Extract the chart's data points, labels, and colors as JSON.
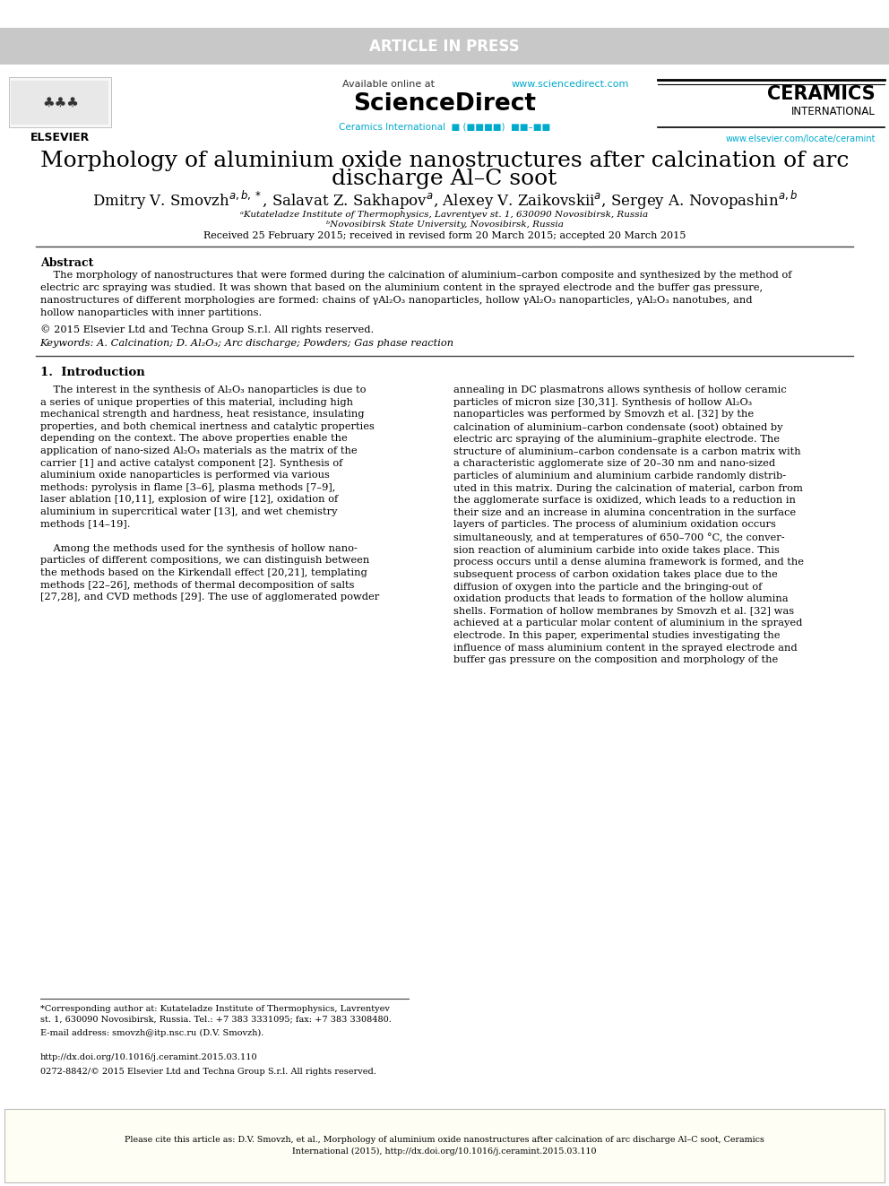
{
  "fig_width": 9.92,
  "fig_height": 13.23,
  "bg_color": "#ffffff",
  "header_bar_color": "#c8c8c8",
  "article_in_press_text": "ARTICLE IN PRESS",
  "article_in_press_color": "#ffffff",
  "article_in_press_fontsize": 12,
  "available_online_text": "Available online at ",
  "sciencedirect_url": "www.sciencedirect.com",
  "sciencedirect_big": "ScienceDirect",
  "ceramics_intl_line1": "CERAMICS",
  "ceramics_intl_line2": "INTERNATIONAL",
  "ceramics_intl_url": "www.elsevier.com/locate/ceramint",
  "ceramics_journal_text": "Ceramics International",
  "link_color": "#00aacc",
  "elsevier_text": "ELSEVIER",
  "title_line1": "Morphology of aluminium oxide nanostructures after calcination of arc",
  "title_line2": "discharge Al–C soot",
  "title_fontsize": 18,
  "affil1": "ᵃKutateladze Institute of Thermophysics, Lavrentyev st. 1, 630090 Novosibirsk, Russia",
  "affil2": "ᵇNovosibirsk State University, Novosibirsk, Russia",
  "received_text": "Received 25 February 2015; received in revised form 20 March 2015; accepted 20 March 2015",
  "abstract_title": "Abstract",
  "abstract_body_lines": [
    "    The morphology of nanostructures that were formed during the calcination of aluminium–carbon composite and synthesized by the method of",
    "electric arc spraying was studied. It was shown that based on the aluminium content in the sprayed electrode and the buffer gas pressure,",
    "nanostructures of different morphologies are formed: chains of γAl₂O₃ nanoparticles, hollow γAl₂O₃ nanoparticles, γAl₂O₃ nanotubes, and",
    "hollow nanoparticles with inner partitions."
  ],
  "copyright_text": "© 2015 Elsevier Ltd and Techna Group S.r.l. All rights reserved.",
  "keywords_text": "Keywords: A. Calcination; D. Al₂O₃; Arc discharge; Powders; Gas phase reaction",
  "section1_title": "1.  Introduction",
  "col1_lines": [
    "    The interest in the synthesis of Al₂O₃ nanoparticles is due to",
    "a series of unique properties of this material, including high",
    "mechanical strength and hardness, heat resistance, insulating",
    "properties, and both chemical inertness and catalytic properties",
    "depending on the context. The above properties enable the",
    "application of nano-sized Al₂O₃ materials as the matrix of the",
    "carrier [1] and active catalyst component [2]. Synthesis of",
    "aluminium oxide nanoparticles is performed via various",
    "methods: pyrolysis in flame [3–6], plasma methods [7–9],",
    "laser ablation [10,11], explosion of wire [12], oxidation of",
    "aluminium in supercritical water [13], and wet chemistry",
    "methods [14–19].",
    "",
    "    Among the methods used for the synthesis of hollow nano-",
    "particles of different compositions, we can distinguish between",
    "the methods based on the Kirkendall effect [20,21], templating",
    "methods [22–26], methods of thermal decomposition of salts",
    "[27,28], and CVD methods [29]. The use of agglomerated powder"
  ],
  "col2_lines": [
    "annealing in DC plasmatrons allows synthesis of hollow ceramic",
    "particles of micron size [30,31]. Synthesis of hollow Al₂O₃",
    "nanoparticles was performed by Smovzh et al. [32] by the",
    "calcination of aluminium–carbon condensate (soot) obtained by",
    "electric arc spraying of the aluminium–graphite electrode. The",
    "structure of aluminium–carbon condensate is a carbon matrix with",
    "a characteristic agglomerate size of 20–30 nm and nano-sized",
    "particles of aluminium and aluminium carbide randomly distrib-",
    "uted in this matrix. During the calcination of material, carbon from",
    "the agglomerate surface is oxidized, which leads to a reduction in",
    "their size and an increase in alumina concentration in the surface",
    "layers of particles. The process of aluminium oxidation occurs",
    "simultaneously, and at temperatures of 650–700 °C, the conver-",
    "sion reaction of aluminium carbide into oxide takes place. This",
    "process occurs until a dense alumina framework is formed, and the",
    "subsequent process of carbon oxidation takes place due to the",
    "diffusion of oxygen into the particle and the bringing-out of",
    "oxidation products that leads to formation of the hollow alumina",
    "shells. Formation of hollow membranes by Smovzh et al. [32] was",
    "achieved at a particular molar content of aluminium in the sprayed",
    "electrode. In this paper, experimental studies investigating the",
    "influence of mass aluminium content in the sprayed electrode and",
    "buffer gas pressure on the composition and morphology of the"
  ],
  "footnote_line1": "*Corresponding author at: Kutateladze Institute of Thermophysics, Lavrentyev",
  "footnote_line2": "st. 1, 630090 Novosibirsk, Russia. Tel.: +7 383 3331095; fax: +7 383 3308480.",
  "footnote_email": "E-mail address: smovzh@itp.nsc.ru (D.V. Smovzh).",
  "doi_text": "http://dx.doi.org/10.1016/j.ceramint.2015.03.110",
  "issn_text": "0272-8842/© 2015 Elsevier Ltd and Techna Group S.r.l. All rights reserved.",
  "cite_box_text": "Please cite this article as: D.V. Smovzh, et al., Morphology of aluminium oxide nanostructures after calcination of arc discharge Al–C soot, Ceramics\nInternational (2015), http://dx.doi.org/10.1016/j.ceramint.2015.03.110",
  "text_color": "#000000",
  "body_fontsize": 8.2,
  "small_fontsize": 7.5,
  "footnote_fontsize": 7.0
}
